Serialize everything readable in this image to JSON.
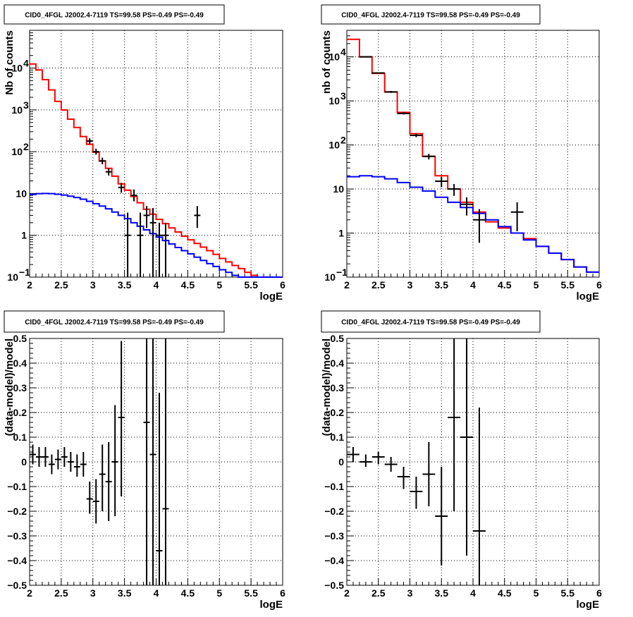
{
  "chart_data": [
    {
      "type": "line",
      "title": "CID0_4FGL J2002.4-7119 TS=99.58 PS=-0.49 PS=-0.49",
      "xlabel": "logE",
      "ylabel": "Nb of counts",
      "yscale": "log",
      "xlim": [
        2,
        6
      ],
      "ylim": [
        0.1,
        80000
      ],
      "grid": true,
      "x_ticks": [
        "2",
        "2.5",
        "3",
        "3.5",
        "4",
        "4.5",
        "5",
        "5.5",
        "6"
      ],
      "y_ticks": [
        {
          "v": 0.1,
          "label": "10",
          "exp": "−1"
        },
        {
          "v": 1,
          "label": "1",
          "exp": ""
        },
        {
          "v": 10,
          "label": "10",
          "exp": ""
        },
        {
          "v": 100,
          "label": "10",
          "exp": "2"
        },
        {
          "v": 1000,
          "label": "10",
          "exp": "3"
        },
        {
          "v": 10000,
          "label": "10",
          "exp": "4"
        }
      ],
      "bin_edges": [
        2.0,
        2.1,
        2.2,
        2.3,
        2.4,
        2.5,
        2.6,
        2.7,
        2.8,
        2.9,
        3.0,
        3.1,
        3.2,
        3.3,
        3.4,
        3.5,
        3.6,
        3.7,
        3.8,
        3.9,
        4.0,
        4.1,
        4.2,
        4.3,
        4.4,
        4.5,
        4.6,
        4.7,
        4.8,
        4.9,
        5.0,
        5.1,
        5.2,
        5.3,
        5.4,
        5.5,
        5.6,
        5.7,
        5.8,
        5.9,
        6.0
      ],
      "series": [
        {
          "name": "",
          "color": "#ff0000",
          "style": "step",
          "values": [
            12500,
            9000,
            5300,
            3000,
            1600,
            1000,
            600,
            380,
            230,
            150,
            97,
            60,
            40,
            26,
            17,
            12,
            8.5,
            6,
            4.2,
            3.2,
            2.4,
            1.9,
            1.5,
            1.2,
            0.95,
            0.78,
            0.64,
            0.52,
            0.43,
            0.35,
            0.28,
            0.23,
            0.19,
            0.16,
            0.13,
            0.11,
            0.1,
            0.1,
            0.1,
            0.1
          ]
        },
        {
          "name": "",
          "color": "#0000ff",
          "style": "step",
          "values": [
            9.5,
            9.9,
            10.0,
            9.9,
            9.6,
            9.2,
            8.6,
            8.0,
            7.3,
            6.5,
            5.7,
            5.0,
            4.3,
            3.6,
            3.0,
            2.5,
            2.0,
            1.65,
            1.35,
            1.1,
            0.9,
            0.75,
            0.62,
            0.51,
            0.43,
            0.36,
            0.3,
            0.25,
            0.21,
            0.18,
            0.15,
            0.13,
            0.11,
            0.1,
            0.1,
            0.1,
            0.1,
            0.1,
            0.1,
            0.1
          ]
        },
        {
          "name": "",
          "color": "#000000",
          "style": "errorbar",
          "points": [
            {
              "x": 2.95,
              "xerr": 0.05,
              "y": 180,
              "ylo": 150,
              "yhi": 210
            },
            {
              "x": 3.05,
              "xerr": 0.05,
              "y": 100,
              "ylo": 85,
              "yhi": 118
            },
            {
              "x": 3.15,
              "xerr": 0.05,
              "y": 60,
              "ylo": 50,
              "yhi": 72
            },
            {
              "x": 3.25,
              "xerr": 0.05,
              "y": 33,
              "ylo": 27,
              "yhi": 40
            },
            {
              "x": 3.45,
              "xerr": 0.05,
              "y": 14,
              "ylo": 10.5,
              "yhi": 18
            },
            {
              "x": 3.55,
              "xerr": 0.05,
              "y": 1,
              "ylo": 0.1,
              "yhi": 3.5
            },
            {
              "x": 3.65,
              "xerr": 0.05,
              "y": 9,
              "ylo": 6.5,
              "yhi": 12.5
            },
            {
              "x": 3.75,
              "xerr": 0.05,
              "y": 1,
              "ylo": 0.1,
              "yhi": 3.5
            },
            {
              "x": 3.85,
              "xerr": 0.05,
              "y": 3,
              "ylo": 1.5,
              "yhi": 5
            },
            {
              "x": 3.95,
              "xerr": 0.05,
              "y": 2,
              "ylo": 0.1,
              "yhi": 4.5
            },
            {
              "x": 4.05,
              "xerr": 0.05,
              "y": 1,
              "ylo": 0.1,
              "yhi": 2
            },
            {
              "x": 4.15,
              "xerr": 0.05,
              "y": 1,
              "ylo": 0.1,
              "yhi": 2
            },
            {
              "x": 4.65,
              "xerr": 0.05,
              "y": 3,
              "ylo": 1.5,
              "yhi": 5
            }
          ]
        }
      ]
    },
    {
      "type": "line",
      "title": "CID0_4FGL J2002.4-7119 TS=99.58 PS=-0.49 PS=-0.49",
      "xlabel": "logE",
      "ylabel": "nb of counts",
      "yscale": "log",
      "xlim": [
        2,
        6
      ],
      "ylim": [
        0.1,
        40000
      ],
      "grid": true,
      "x_ticks": [
        "2",
        "2.5",
        "3",
        "3.5",
        "4",
        "4.5",
        "5",
        "5.5",
        "6"
      ],
      "y_ticks": [
        {
          "v": 0.1,
          "label": "10",
          "exp": "−1"
        },
        {
          "v": 1,
          "label": "1",
          "exp": ""
        },
        {
          "v": 10,
          "label": "10",
          "exp": ""
        },
        {
          "v": 100,
          "label": "10",
          "exp": "2"
        },
        {
          "v": 1000,
          "label": "10",
          "exp": "3"
        },
        {
          "v": 10000,
          "label": "10",
          "exp": "4"
        }
      ],
      "bin_edges": [
        2.0,
        2.2,
        2.4,
        2.6,
        2.8,
        3.0,
        3.2,
        3.4,
        3.6,
        3.8,
        4.0,
        4.2,
        4.4,
        4.6,
        4.8,
        5.0,
        5.2,
        5.4,
        5.6,
        5.8,
        6.0
      ],
      "series": [
        {
          "name": "",
          "color": "#ff0000",
          "style": "step",
          "values": [
            25000,
            10000,
            4200,
            1600,
            550,
            180,
            55,
            20,
            10,
            5,
            3,
            1.8,
            1.3,
            1.0,
            0.75,
            0.5,
            0.35,
            0.25,
            0.17,
            0.13
          ]
        },
        {
          "name": "",
          "color": "#0000ff",
          "style": "step",
          "values": [
            19,
            20,
            19,
            17,
            14,
            11,
            9,
            6.5,
            5,
            3.8,
            2.8,
            2.0,
            1.4,
            1.0,
            0.7,
            0.5,
            0.35,
            0.25,
            0.17,
            0.13
          ]
        },
        {
          "name": "",
          "color": "#000000",
          "style": "errorbar",
          "points": [
            {
              "x": 2.3,
              "xerr": 0.1,
              "y": 10000,
              "ylo": 9700,
              "yhi": 10300
            },
            {
              "x": 2.5,
              "xerr": 0.1,
              "y": 4300,
              "ylo": 4150,
              "yhi": 4450
            },
            {
              "x": 2.7,
              "xerr": 0.1,
              "y": 1600,
              "ylo": 1520,
              "yhi": 1680
            },
            {
              "x": 2.9,
              "xerr": 0.1,
              "y": 520,
              "ylo": 490,
              "yhi": 560
            },
            {
              "x": 3.1,
              "xerr": 0.1,
              "y": 165,
              "ylo": 150,
              "yhi": 180
            },
            {
              "x": 3.3,
              "xerr": 0.1,
              "y": 55,
              "ylo": 47,
              "yhi": 63
            },
            {
              "x": 3.5,
              "xerr": 0.1,
              "y": 15,
              "ylo": 11,
              "yhi": 19
            },
            {
              "x": 3.7,
              "xerr": 0.1,
              "y": 10,
              "ylo": 7,
              "yhi": 13
            },
            {
              "x": 3.9,
              "xerr": 0.1,
              "y": 4.5,
              "ylo": 2.5,
              "yhi": 6.5
            },
            {
              "x": 4.1,
              "xerr": 0.1,
              "y": 2,
              "ylo": 0.6,
              "yhi": 3.5
            },
            {
              "x": 4.7,
              "xerr": 0.1,
              "y": 3,
              "ylo": 1.1,
              "yhi": 5
            }
          ]
        }
      ]
    },
    {
      "type": "scatter",
      "title": "CID0_4FGL J2002.4-7119 TS=99.58 PS=-0.49 PS=-0.49",
      "xlabel": "logE",
      "ylabel": "(data-model)/model",
      "xlim": [
        2,
        6
      ],
      "ylim": [
        -0.5,
        0.5
      ],
      "grid": true,
      "x_ticks": [
        "2",
        "2.5",
        "3",
        "3.5",
        "4",
        "4.5",
        "5",
        "5.5",
        "6"
      ],
      "y_ticks": [
        "−0.5",
        "−0.4",
        "−0.3",
        "−0.2",
        "−0.1",
        "0",
        "0.1",
        "0.2",
        "0.3",
        "0.4",
        "0.5"
      ],
      "series": [
        {
          "name": "",
          "color": "#000000",
          "style": "errorbar",
          "points": [
            {
              "x": 2.05,
              "xerr": 0.05,
              "y": 0.03,
              "ylo": -0.01,
              "yhi": 0.07
            },
            {
              "x": 2.15,
              "xerr": 0.05,
              "y": 0.02,
              "ylo": -0.02,
              "yhi": 0.06
            },
            {
              "x": 2.25,
              "xerr": 0.05,
              "y": 0.02,
              "ylo": -0.02,
              "yhi": 0.06
            },
            {
              "x": 2.35,
              "xerr": 0.05,
              "y": -0.01,
              "ylo": -0.05,
              "yhi": 0.03
            },
            {
              "x": 2.45,
              "xerr": 0.05,
              "y": 0.01,
              "ylo": -0.03,
              "yhi": 0.05
            },
            {
              "x": 2.55,
              "xerr": 0.05,
              "y": 0.02,
              "ylo": -0.02,
              "yhi": 0.06
            },
            {
              "x": 2.65,
              "xerr": 0.05,
              "y": 0.0,
              "ylo": -0.04,
              "yhi": 0.04
            },
            {
              "x": 2.75,
              "xerr": 0.05,
              "y": -0.02,
              "ylo": -0.06,
              "yhi": 0.03
            },
            {
              "x": 2.85,
              "xerr": 0.05,
              "y": -0.01,
              "ylo": -0.06,
              "yhi": 0.04
            },
            {
              "x": 2.95,
              "xerr": 0.05,
              "y": -0.15,
              "ylo": -0.21,
              "yhi": -0.08
            },
            {
              "x": 3.05,
              "xerr": 0.05,
              "y": -0.16,
              "ylo": -0.25,
              "yhi": -0.07
            },
            {
              "x": 3.15,
              "xerr": 0.05,
              "y": -0.05,
              "ylo": -0.2,
              "yhi": 0.07
            },
            {
              "x": 3.25,
              "xerr": 0.05,
              "y": -0.08,
              "ylo": -0.24,
              "yhi": 0.08
            },
            {
              "x": 3.35,
              "xerr": 0.05,
              "y": 0.0,
              "ylo": -0.22,
              "yhi": 0.23
            },
            {
              "x": 3.45,
              "xerr": 0.05,
              "y": 0.18,
              "ylo": -0.14,
              "yhi": 0.49
            },
            {
              "x": 3.85,
              "xerr": 0.05,
              "y": 0.16,
              "ylo": -0.5,
              "yhi": 0.5
            },
            {
              "x": 3.95,
              "xerr": 0.05,
              "y": 0.03,
              "ylo": -0.5,
              "yhi": 0.5
            },
            {
              "x": 4.05,
              "xerr": 0.05,
              "y": -0.36,
              "ylo": -0.5,
              "yhi": 0.28
            },
            {
              "x": 4.15,
              "xerr": 0.05,
              "y": -0.19,
              "ylo": -0.5,
              "yhi": 0.5
            }
          ]
        }
      ]
    },
    {
      "type": "scatter",
      "title": "CID0_4FGL J2002.4-7119 TS=99.58 PS=-0.49 PS=-0.49",
      "xlabel": "logE",
      "ylabel": "(data-model)/model",
      "xlim": [
        2,
        6
      ],
      "ylim": [
        -0.5,
        0.5
      ],
      "grid": true,
      "x_ticks": [
        "2",
        "2.5",
        "3",
        "3.5",
        "4",
        "4.5",
        "5",
        "5.5",
        "6"
      ],
      "y_ticks": [
        "−0.5",
        "−0.4",
        "−0.3",
        "−0.2",
        "−0.1",
        "0",
        "0.1",
        "0.2",
        "0.3",
        "0.4",
        "0.5"
      ],
      "series": [
        {
          "name": "",
          "color": "#000000",
          "style": "errorbar",
          "points": [
            {
              "x": 2.1,
              "xerr": 0.1,
              "y": 0.03,
              "ylo": 0.0,
              "yhi": 0.06
            },
            {
              "x": 2.3,
              "xerr": 0.1,
              "y": 0.0,
              "ylo": -0.02,
              "yhi": 0.03
            },
            {
              "x": 2.5,
              "xerr": 0.1,
              "y": 0.02,
              "ylo": -0.01,
              "yhi": 0.04
            },
            {
              "x": 2.7,
              "xerr": 0.1,
              "y": -0.01,
              "ylo": -0.04,
              "yhi": 0.02
            },
            {
              "x": 2.9,
              "xerr": 0.1,
              "y": -0.06,
              "ylo": -0.11,
              "yhi": -0.02
            },
            {
              "x": 3.1,
              "xerr": 0.1,
              "y": -0.12,
              "ylo": -0.19,
              "yhi": -0.06
            },
            {
              "x": 3.3,
              "xerr": 0.1,
              "y": -0.05,
              "ylo": -0.18,
              "yhi": 0.08
            },
            {
              "x": 3.5,
              "xerr": 0.1,
              "y": -0.22,
              "ylo": -0.42,
              "yhi": -0.02
            },
            {
              "x": 3.7,
              "xerr": 0.1,
              "y": 0.18,
              "ylo": -0.2,
              "yhi": 0.5
            },
            {
              "x": 3.9,
              "xerr": 0.1,
              "y": 0.1,
              "ylo": -0.38,
              "yhi": 0.5
            },
            {
              "x": 4.1,
              "xerr": 0.1,
              "y": -0.28,
              "ylo": -0.5,
              "yhi": 0.22
            }
          ]
        }
      ]
    }
  ]
}
